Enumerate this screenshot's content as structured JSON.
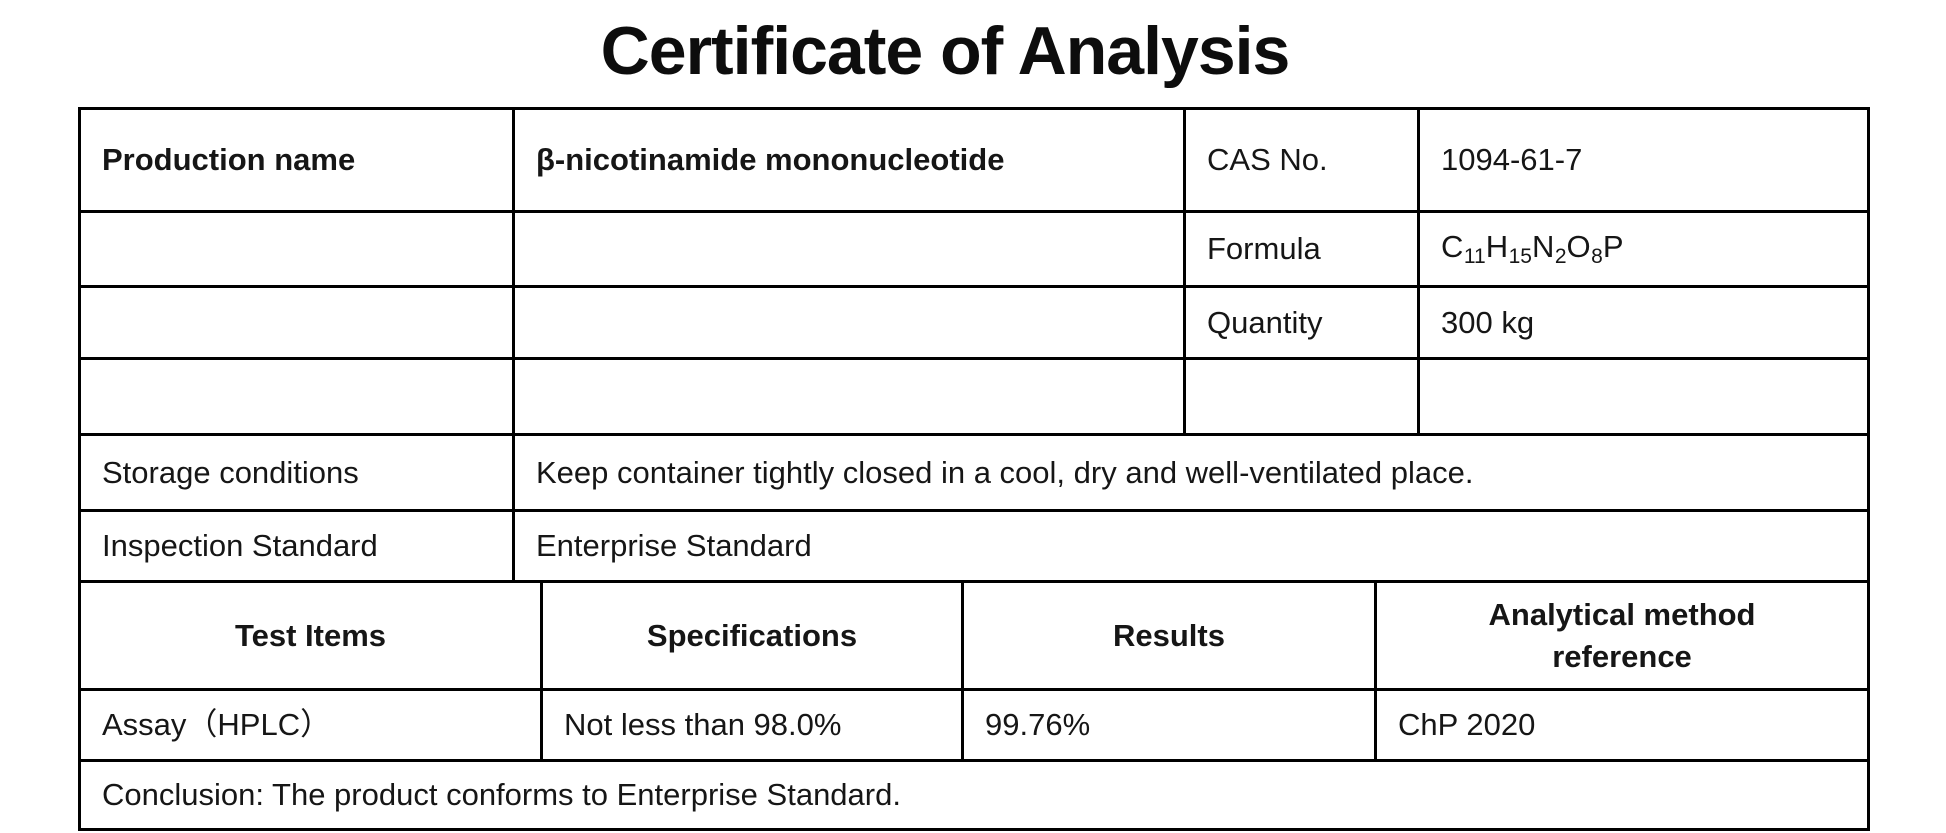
{
  "title": "Certificate of Analysis",
  "colors": {
    "border": "#000000",
    "text": "#161616"
  },
  "product": {
    "name_label": "Production name",
    "name_value": "β-nicotinamide mononucleotide",
    "cas_label": "CAS No.",
    "cas_value": "1094-61-7",
    "formula_label": "Formula",
    "formula_text": "C11H15N2O8P",
    "formula_segments": [
      {
        "text": "C"
      },
      {
        "text": "11",
        "sub": true
      },
      {
        "text": "H"
      },
      {
        "text": "15",
        "sub": true
      },
      {
        "text": "N"
      },
      {
        "text": "2",
        "sub": true
      },
      {
        "text": "O"
      },
      {
        "text": "8",
        "sub": true
      },
      {
        "text": "P"
      }
    ],
    "quantity_label": "Quantity",
    "quantity_value": "300 kg"
  },
  "storage": {
    "label": "Storage conditions",
    "value": "Keep container tightly closed in a cool, dry and well-ventilated place."
  },
  "inspection": {
    "label": "Inspection Standard",
    "value": "Enterprise Standard"
  },
  "tests": {
    "headers": {
      "items": "Test Items",
      "specifications": "Specifications",
      "results": "Results",
      "method": "Analytical method reference"
    },
    "rows": [
      {
        "item": "Assay（HPLC）",
        "specification": "Not less than 98.0%",
        "result": "99.76%",
        "method": "ChP 2020"
      }
    ]
  },
  "conclusion": "Conclusion: The product conforms to Enterprise Standard."
}
